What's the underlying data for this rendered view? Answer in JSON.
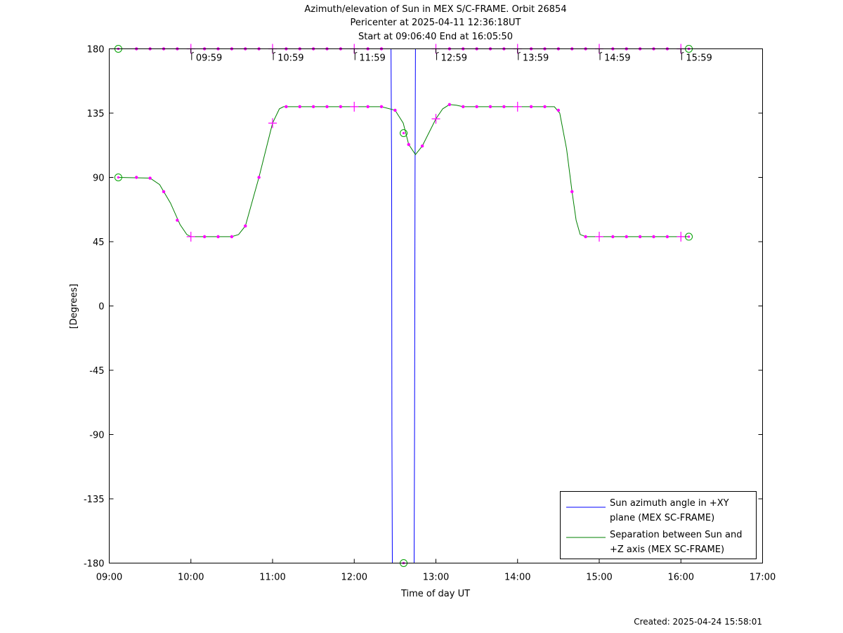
{
  "chart_data": {
    "type": "line",
    "title": "Azimuth/elevation of Sun in MEX S/C-FRAME.  Orbit 26854",
    "subtitle_1": "Pericenter at 2025-04-11 12:36:18UT",
    "subtitle_2": "Start at 09:06:40 End at 16:05:50",
    "xlabel": "Time of day UT",
    "ylabel": "[Degrees]",
    "footer": "Created: 2025-04-24 15:58:01",
    "xlim": [
      "09:00",
      "17:00"
    ],
    "ylim": [
      -180,
      180
    ],
    "x_ticks": [
      "09:00",
      "10:00",
      "11:00",
      "12:00",
      "13:00",
      "14:00",
      "15:00",
      "16:00",
      "17:00"
    ],
    "y_ticks": [
      "180",
      "135",
      "90",
      "45",
      "0",
      "-45",
      "-90",
      "-135",
      "-180"
    ],
    "grid": false,
    "legend_position": "bottom-right",
    "series": [
      {
        "name": "Sun azimuth angle in +XY plane (MEX SC-FRAME)",
        "legend_lines": [
          "Sun azimuth angle in +XY",
          "plane (MEX SC-FRAME)"
        ],
        "color": "#0000ff",
        "points": [
          [
            "09:06:40",
            180
          ],
          [
            "12:25:00",
            180
          ],
          [
            "12:27:00",
            180
          ],
          [
            "12:27:30",
            90
          ],
          [
            "12:27:40",
            -90
          ],
          [
            "12:28:00",
            -180
          ],
          [
            "12:44:00",
            -180
          ],
          [
            "12:44:20",
            -90
          ],
          [
            "12:44:40",
            90
          ],
          [
            "12:45:00",
            180
          ],
          [
            "16:05:50",
            180
          ]
        ]
      },
      {
        "name": "Separation between Sun and +Z axis (MEX SC-FRAME)",
        "legend_lines": [
          "Separation between Sun and",
          "+Z axis (MEX SC-FRAME)"
        ],
        "color": "#008000",
        "points": [
          [
            "09:06:40",
            90
          ],
          [
            "09:30:00",
            89.5
          ],
          [
            "09:37:00",
            85
          ],
          [
            "09:45:00",
            72
          ],
          [
            "09:52:00",
            57
          ],
          [
            "09:57:00",
            50
          ],
          [
            "10:00:00",
            48.5
          ],
          [
            "10:30:00",
            48.5
          ],
          [
            "10:35:00",
            50
          ],
          [
            "10:40:00",
            56
          ],
          [
            "10:50:00",
            90
          ],
          [
            "11:00:00",
            128
          ],
          [
            "11:05:00",
            138
          ],
          [
            "11:08:00",
            139.5
          ],
          [
            "12:20:00",
            139.5
          ],
          [
            "12:30:00",
            137
          ],
          [
            "12:36:00",
            128
          ],
          [
            "12:40:00",
            113
          ],
          [
            "12:45:00",
            106
          ],
          [
            "12:50:00",
            112
          ],
          [
            "13:00:00",
            131
          ],
          [
            "13:05:00",
            138
          ],
          [
            "13:10:00",
            141
          ],
          [
            "13:15:00",
            140.5
          ],
          [
            "13:20:00",
            139.5
          ],
          [
            "14:27:00",
            139.5
          ],
          [
            "14:31:00",
            135
          ],
          [
            "14:36:00",
            110
          ],
          [
            "14:40:00",
            80
          ],
          [
            "14:43:00",
            60
          ],
          [
            "14:46:00",
            50
          ],
          [
            "14:50:00",
            48.5
          ],
          [
            "16:05:50",
            48.5
          ]
        ]
      }
    ],
    "markers": {
      "magenta_dots": [
        [
          "09:20:00",
          180
        ],
        [
          "09:30:00",
          180
        ],
        [
          "09:40:00",
          180
        ],
        [
          "09:50:00",
          180
        ],
        [
          "10:10:00",
          180
        ],
        [
          "10:20:00",
          180
        ],
        [
          "10:30:00",
          180
        ],
        [
          "10:40:00",
          180
        ],
        [
          "10:50:00",
          180
        ],
        [
          "11:10:00",
          180
        ],
        [
          "11:20:00",
          180
        ],
        [
          "11:30:00",
          180
        ],
        [
          "11:40:00",
          180
        ],
        [
          "11:50:00",
          180
        ],
        [
          "12:10:00",
          180
        ],
        [
          "12:20:00",
          180
        ],
        [
          "13:10:00",
          180
        ],
        [
          "13:20:00",
          180
        ],
        [
          "13:30:00",
          180
        ],
        [
          "13:40:00",
          180
        ],
        [
          "13:50:00",
          180
        ],
        [
          "14:10:00",
          180
        ],
        [
          "14:20:00",
          180
        ],
        [
          "14:30:00",
          180
        ],
        [
          "14:40:00",
          180
        ],
        [
          "14:50:00",
          180
        ],
        [
          "15:10:00",
          180
        ],
        [
          "15:20:00",
          180
        ],
        [
          "15:30:00",
          180
        ],
        [
          "15:40:00",
          180
        ],
        [
          "15:50:00",
          180
        ],
        [
          "09:20:00",
          90
        ],
        [
          "09:30:00",
          89.5
        ],
        [
          "09:40:00",
          80
        ],
        [
          "09:50:00",
          60
        ],
        [
          "10:10:00",
          48.5
        ],
        [
          "10:20:00",
          48.5
        ],
        [
          "10:30:00",
          48.5
        ],
        [
          "10:40:00",
          56
        ],
        [
          "10:50:00",
          90
        ],
        [
          "11:10:00",
          139.5
        ],
        [
          "11:20:00",
          139.5
        ],
        [
          "11:30:00",
          139.5
        ],
        [
          "11:40:00",
          139.5
        ],
        [
          "11:50:00",
          139.5
        ],
        [
          "12:10:00",
          139.5
        ],
        [
          "12:20:00",
          139.5
        ],
        [
          "12:30:00",
          137
        ],
        [
          "12:40:00",
          113
        ],
        [
          "12:50:00",
          112
        ],
        [
          "13:10:00",
          141
        ],
        [
          "13:20:00",
          139.5
        ],
        [
          "13:30:00",
          139.5
        ],
        [
          "13:40:00",
          139.5
        ],
        [
          "13:50:00",
          139.5
        ],
        [
          "14:10:00",
          139.5
        ],
        [
          "14:20:00",
          139.5
        ],
        [
          "14:30:00",
          137
        ],
        [
          "14:40:00",
          80
        ],
        [
          "14:50:00",
          48.5
        ],
        [
          "15:10:00",
          48.5
        ],
        [
          "15:20:00",
          48.5
        ],
        [
          "15:30:00",
          48.5
        ],
        [
          "15:40:00",
          48.5
        ],
        [
          "15:50:00",
          48.5
        ]
      ],
      "magenta_crosses": [
        [
          "10:00:00",
          180
        ],
        [
          "11:00:00",
          180
        ],
        [
          "12:00:00",
          180
        ],
        [
          "13:00:00",
          180
        ],
        [
          "14:00:00",
          180
        ],
        [
          "15:00:00",
          180
        ],
        [
          "16:00:00",
          180
        ],
        [
          "10:00:00",
          48.5
        ],
        [
          "11:00:00",
          128
        ],
        [
          "12:00:00",
          139.5
        ],
        [
          "13:00:00",
          131
        ],
        [
          "14:00:00",
          139.5
        ],
        [
          "15:00:00",
          48.5
        ],
        [
          "16:00:00",
          48.5
        ]
      ],
      "green_circles": [
        [
          "09:06:40",
          180
        ],
        [
          "09:06:40",
          90
        ],
        [
          "12:36:18",
          121
        ],
        [
          "12:36:18",
          -180
        ],
        [
          "16:05:50",
          180
        ],
        [
          "16:05:50",
          48.5
        ]
      ],
      "time_labels": [
        {
          "time": "09:59",
          "label": "09:59"
        },
        {
          "time": "10:59",
          "label": "10:59"
        },
        {
          "time": "11:59",
          "label": "11:59"
        },
        {
          "time": "12:59",
          "label": "12:59"
        },
        {
          "time": "13:59",
          "label": "13:59"
        },
        {
          "time": "14:59",
          "label": "14:59"
        },
        {
          "time": "15:59",
          "label": "15:59"
        }
      ]
    }
  }
}
